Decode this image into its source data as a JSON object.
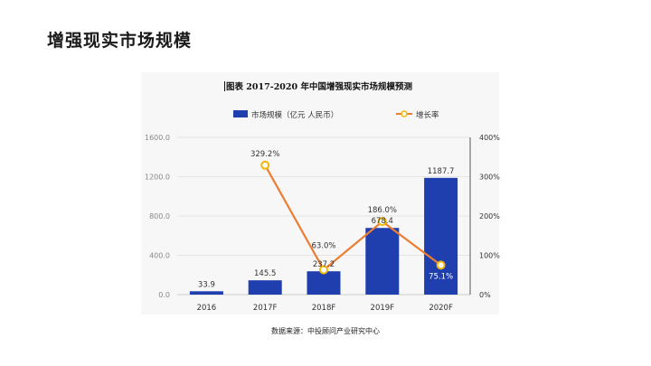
{
  "slide_title": "增强现实市场规模",
  "source": "数据来源：中投顾问产业研究中心",
  "colors": {
    "bar": "#1f3fae",
    "line": "#ed7d31",
    "marker_fill": "#ffffff",
    "marker_stroke": "#f2b705",
    "axis_text": "#888888",
    "grid": "#e4e4e4"
  },
  "chart_data": {
    "type": "bar",
    "title": "图表  2017-2020 年中国增强现实市场规模预测",
    "categories": [
      "2016",
      "2017F",
      "2018F",
      "2019F",
      "2020F"
    ],
    "series": [
      {
        "name": "市场规模（亿元 人民币）",
        "type": "bar",
        "axis": "left",
        "values": [
          33.9,
          145.5,
          237.2,
          678.4,
          1187.7
        ],
        "labels": [
          "33.9",
          "145.5",
          "237.2",
          "678.4",
          "1187.7"
        ]
      },
      {
        "name": "增长率",
        "type": "line",
        "axis": "right",
        "values": [
          null,
          329.2,
          63.0,
          186.0,
          75.1
        ],
        "labels": [
          "",
          "329.2%",
          "63.0%",
          "186.0%",
          "75.1%"
        ]
      }
    ],
    "y_left": {
      "min": 0,
      "max": 1600,
      "ticks": [
        0,
        400,
        800,
        1200,
        1600
      ],
      "tick_labels": [
        "0.0",
        "400.0",
        "800.0",
        "1200.0",
        "1600.0"
      ]
    },
    "y_right": {
      "min": 0,
      "max": 400,
      "ticks": [
        0,
        100,
        200,
        300,
        400
      ],
      "tick_labels": [
        "0%",
        "100%",
        "200%",
        "300%",
        "400%"
      ]
    },
    "grid": true,
    "legend_position": "top"
  }
}
